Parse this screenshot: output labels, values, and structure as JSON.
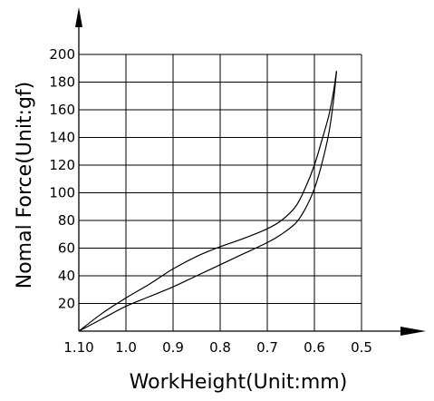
{
  "chart_data": {
    "type": "line",
    "title": "",
    "xlabel": "WorkHeight(Unit:mm)",
    "ylabel": "Nomal Force(Unit:gf)",
    "xlim": [
      1.1,
      0.5
    ],
    "ylim": [
      0,
      200
    ],
    "x_reversed": true,
    "x_ticks": [
      1.1,
      1.0,
      0.9,
      0.8,
      0.7,
      0.6,
      0.5
    ],
    "x_tick_labels": [
      "1.10",
      "1.0",
      "0.9",
      "0.8",
      "0.7",
      "0.6",
      "0.5"
    ],
    "y_ticks": [
      20,
      40,
      60,
      80,
      100,
      120,
      140,
      160,
      180,
      200
    ],
    "y_tick_labels": [
      "20",
      "40",
      "60",
      "80",
      "100",
      "120",
      "140",
      "160",
      "180",
      "200"
    ],
    "grid": true,
    "legend": "none",
    "series": [
      {
        "x": [
          1.1,
          1.05,
          1.0,
          0.95,
          0.9,
          0.85,
          0.8,
          0.75,
          0.7,
          0.67,
          0.64,
          0.62,
          0.6,
          0.585,
          0.57,
          0.56,
          0.553
        ],
        "y": [
          0,
          13,
          24,
          34,
          45,
          54,
          61,
          67,
          74,
          80,
          90,
          103,
          120,
          137,
          155,
          172,
          188
        ]
      },
      {
        "x": [
          1.1,
          1.05,
          1.0,
          0.95,
          0.9,
          0.85,
          0.8,
          0.75,
          0.7,
          0.67,
          0.64,
          0.62,
          0.6,
          0.585,
          0.57,
          0.56,
          0.553
        ],
        "y": [
          0,
          9,
          18,
          25,
          32,
          40,
          48,
          56,
          64,
          70,
          78,
          88,
          103,
          120,
          142,
          165,
          188
        ]
      }
    ]
  }
}
